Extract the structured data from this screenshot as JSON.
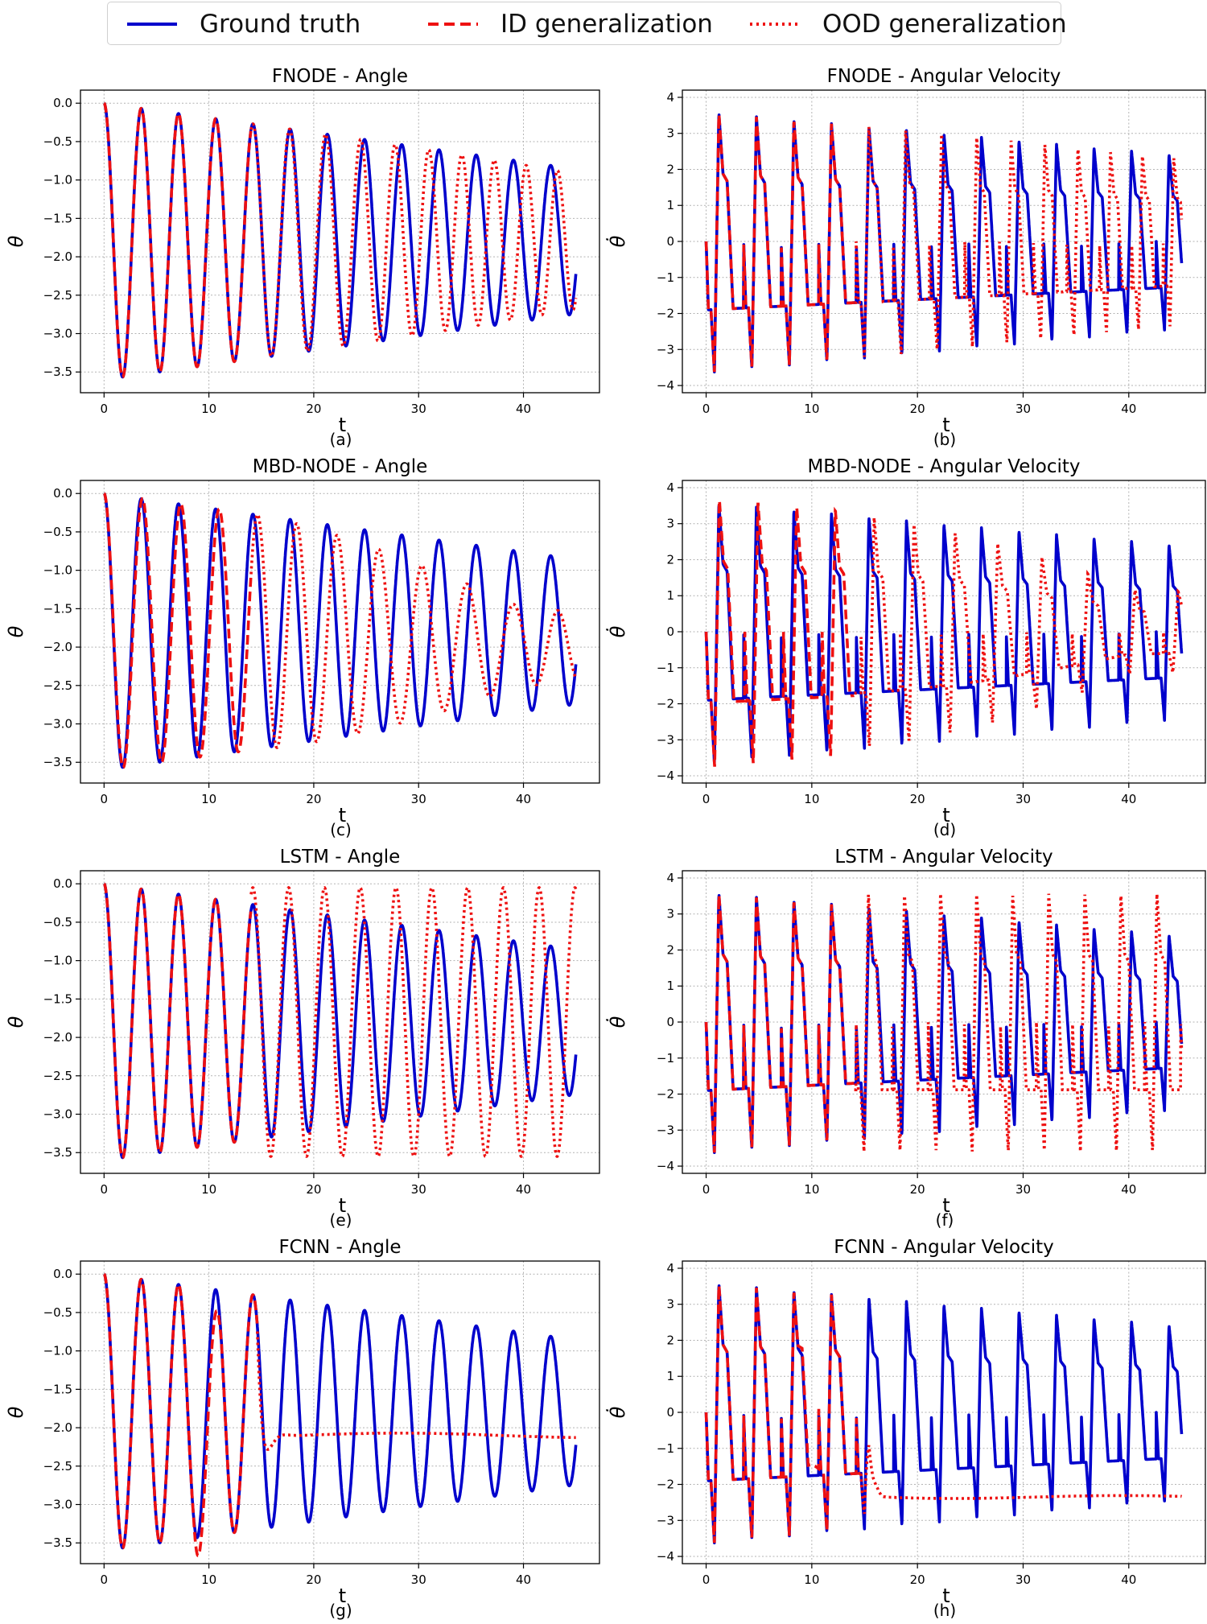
{
  "legend": {
    "items": [
      {
        "label": "Ground truth",
        "color": "#0000cc",
        "style": "solid"
      },
      {
        "label": "ID generalization",
        "color": "#ee1111",
        "style": "dashed"
      },
      {
        "label": "OOD generalization",
        "color": "#ee1111",
        "style": "dotted"
      }
    ]
  },
  "chart_data": [
    {
      "type": "line",
      "model": "FNODE",
      "variable": "angle",
      "title": "FNODE - Angle",
      "xlabel": "t",
      "ylabel": "θ",
      "sublabel": "(a)",
      "xlim": [
        0,
        45
      ],
      "ylim": [
        -3.6,
        0.0
      ],
      "xticks": [
        0,
        10,
        20,
        30,
        40
      ],
      "yticks": [
        0.0,
        -0.5,
        -1.0,
        -1.5,
        -2.0,
        -2.5,
        -3.0,
        -3.5
      ],
      "grid": true,
      "behavior": "ood_phase_drift",
      "series": [
        {
          "name": "Ground truth"
        },
        {
          "name": "ID generalization"
        },
        {
          "name": "OOD generalization"
        }
      ]
    },
    {
      "type": "line",
      "model": "FNODE",
      "variable": "angular_velocity",
      "title": "FNODE - Angular Velocity",
      "xlabel": "t",
      "ylabel": "θ̇",
      "sublabel": "(b)",
      "xlim": [
        0,
        45
      ],
      "ylim": [
        -4,
        4
      ],
      "xticks": [
        0,
        10,
        20,
        30,
        40
      ],
      "yticks": [
        4,
        3,
        2,
        1,
        0,
        -1,
        -2,
        -3,
        -4
      ],
      "grid": true,
      "behavior": "ood_phase_drift",
      "series": [
        {
          "name": "Ground truth"
        },
        {
          "name": "ID generalization"
        },
        {
          "name": "OOD generalization"
        }
      ]
    },
    {
      "type": "line",
      "model": "MBD-NODE",
      "variable": "angle",
      "title": "MBD-NODE - Angle",
      "xlabel": "t",
      "ylabel": "θ",
      "sublabel": "(c)",
      "xlim": [
        0,
        45
      ],
      "ylim": [
        -3.6,
        0.0
      ],
      "xticks": [
        0,
        10,
        20,
        30,
        40
      ],
      "yticks": [
        0.0,
        -0.5,
        -1.0,
        -1.5,
        -2.0,
        -2.5,
        -3.0,
        -3.5
      ],
      "grid": true,
      "behavior": "ood_diverge",
      "series": [
        {
          "name": "Ground truth"
        },
        {
          "name": "ID generalization"
        },
        {
          "name": "OOD generalization"
        }
      ]
    },
    {
      "type": "line",
      "model": "MBD-NODE",
      "variable": "angular_velocity",
      "title": "MBD-NODE - Angular Velocity",
      "xlabel": "t",
      "ylabel": "θ̇",
      "sublabel": "(d)",
      "xlim": [
        0,
        45
      ],
      "ylim": [
        -4,
        4
      ],
      "xticks": [
        0,
        10,
        20,
        30,
        40
      ],
      "yticks": [
        4,
        3,
        2,
        1,
        0,
        -1,
        -2,
        -3,
        -4
      ],
      "grid": true,
      "behavior": "ood_diverge",
      "series": [
        {
          "name": "Ground truth"
        },
        {
          "name": "ID generalization"
        },
        {
          "name": "OOD generalization"
        }
      ]
    },
    {
      "type": "line",
      "model": "LSTM",
      "variable": "angle",
      "title": "LSTM - Angle",
      "xlabel": "t",
      "ylabel": "θ",
      "sublabel": "(e)",
      "xlim": [
        0,
        45
      ],
      "ylim": [
        -3.6,
        0.0
      ],
      "xticks": [
        0,
        10,
        20,
        30,
        40
      ],
      "yticks": [
        0.0,
        -0.5,
        -1.0,
        -1.5,
        -2.0,
        -2.5,
        -3.0,
        -3.5
      ],
      "grid": true,
      "behavior": "ood_full_amplitude",
      "series": [
        {
          "name": "Ground truth"
        },
        {
          "name": "ID generalization"
        },
        {
          "name": "OOD generalization"
        }
      ]
    },
    {
      "type": "line",
      "model": "LSTM",
      "variable": "angular_velocity",
      "title": "LSTM - Angular Velocity",
      "xlabel": "t",
      "ylabel": "θ̇",
      "sublabel": "(f)",
      "xlim": [
        0,
        45
      ],
      "ylim": [
        -4,
        4
      ],
      "xticks": [
        0,
        10,
        20,
        30,
        40
      ],
      "yticks": [
        4,
        3,
        2,
        1,
        0,
        -1,
        -2,
        -3,
        -4
      ],
      "grid": true,
      "behavior": "ood_full_amplitude",
      "series": [
        {
          "name": "Ground truth"
        },
        {
          "name": "ID generalization"
        },
        {
          "name": "OOD generalization"
        }
      ]
    },
    {
      "type": "line",
      "model": "FCNN",
      "variable": "angle",
      "title": "FCNN - Angle",
      "xlabel": "t",
      "ylabel": "θ",
      "sublabel": "(g)",
      "xlim": [
        0,
        45
      ],
      "ylim": [
        -3.6,
        0.0
      ],
      "xticks": [
        0,
        10,
        20,
        30,
        40
      ],
      "yticks": [
        0.0,
        -0.5,
        -1.0,
        -1.5,
        -2.0,
        -2.5,
        -3.0,
        -3.5
      ],
      "grid": true,
      "behavior": "ood_flatline",
      "ood_flat_value": -2.1,
      "series": [
        {
          "name": "Ground truth"
        },
        {
          "name": "ID generalization"
        },
        {
          "name": "OOD generalization"
        }
      ]
    },
    {
      "type": "line",
      "model": "FCNN",
      "variable": "angular_velocity",
      "title": "FCNN - Angular Velocity",
      "xlabel": "t",
      "ylabel": "θ̇",
      "sublabel": "(h)",
      "xlim": [
        0,
        45
      ],
      "ylim": [
        -4,
        4
      ],
      "xticks": [
        0,
        10,
        20,
        30,
        40
      ],
      "yticks": [
        4,
        3,
        2,
        1,
        0,
        -1,
        -2,
        -3,
        -4
      ],
      "grid": true,
      "behavior": "ood_flatline",
      "ood_flat_value": -2.35,
      "series": [
        {
          "name": "Ground truth"
        },
        {
          "name": "ID generalization"
        },
        {
          "name": "OOD generalization"
        }
      ]
    }
  ]
}
